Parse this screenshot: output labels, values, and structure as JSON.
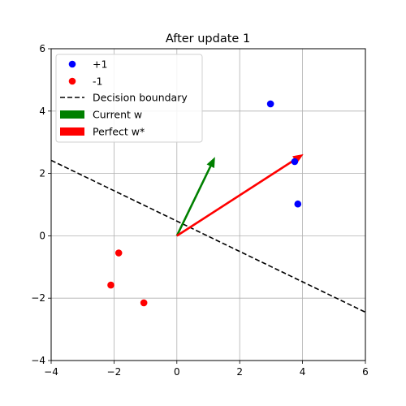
{
  "chart_data": {
    "type": "scatter",
    "title": "After update 1",
    "xlabel": "",
    "ylabel": "",
    "xlim": [
      -4,
      6
    ],
    "ylim": [
      -4,
      6
    ],
    "x_ticks": [
      -4,
      -2,
      0,
      2,
      4,
      6
    ],
    "y_ticks": [
      -4,
      -2,
      0,
      2,
      4,
      6
    ],
    "x_tick_labels": [
      "−4",
      "−2",
      "0",
      "2",
      "4",
      "6"
    ],
    "y_tick_labels": [
      "−4",
      "−2",
      "0",
      "2",
      "4",
      "6"
    ],
    "grid": true,
    "legend_position": "top-left",
    "series": [
      {
        "name": "+1",
        "kind": "points",
        "color": "#0000ff",
        "points": [
          [
            2.98,
            4.23
          ],
          [
            3.75,
            2.38
          ],
          [
            3.85,
            1.02
          ]
        ]
      },
      {
        "name": "-1",
        "kind": "points",
        "color": "#ff0000",
        "points": [
          [
            -1.85,
            -0.55
          ],
          [
            -2.1,
            -1.58
          ],
          [
            -1.05,
            -2.15
          ]
        ]
      },
      {
        "name": "Decision boundary",
        "kind": "line",
        "color": "#000000",
        "style": "dashed",
        "points": [
          [
            -4,
            2.42
          ],
          [
            6,
            -2.45
          ]
        ]
      },
      {
        "name": "Current w",
        "kind": "arrow",
        "color": "#008000",
        "from": [
          0,
          0
        ],
        "to": [
          1.2,
          2.5
        ]
      },
      {
        "name": "Perfect w*",
        "kind": "arrow",
        "color": "#ff0000",
        "from": [
          0,
          0
        ],
        "to": [
          4,
          2.6
        ]
      }
    ]
  }
}
